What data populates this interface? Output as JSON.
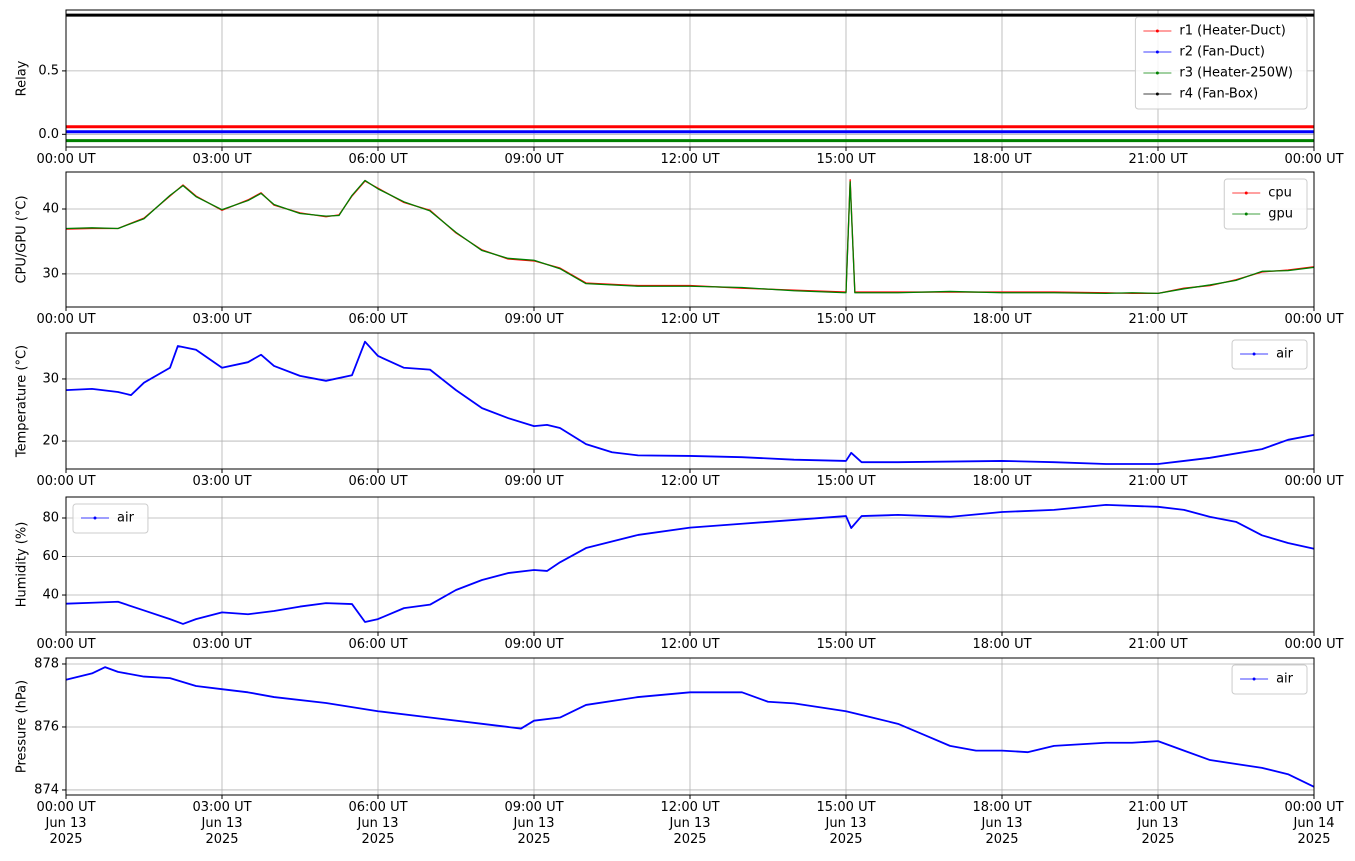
{
  "chart_data": [
    {
      "type": "line",
      "ylabel": "Relay",
      "x": [
        0,
        24
      ],
      "series": [
        {
          "name": "r1 (Heater-Duct)",
          "color": "#ff0000",
          "values": [
            0.06,
            0.06
          ]
        },
        {
          "name": "r2 (Fan-Duct)",
          "color": "#0000ff",
          "values": [
            0.02,
            0.02
          ]
        },
        {
          "name": "r3 (Heater-250W)",
          "color": "#008000",
          "values": [
            -0.05,
            -0.05
          ]
        },
        {
          "name": "r4 (Fan-Box)",
          "color": "#000000",
          "values": [
            0.94,
            0.94
          ]
        }
      ],
      "xlim": [
        0,
        24
      ],
      "xticks": [
        {
          "value": 0,
          "label": "00:00 UT"
        },
        {
          "value": 3,
          "label": "03:00 UT"
        },
        {
          "value": 6,
          "label": "06:00 UT"
        },
        {
          "value": 9,
          "label": "09:00 UT"
        },
        {
          "value": 12,
          "label": "12:00 UT"
        },
        {
          "value": 15,
          "label": "15:00 UT"
        },
        {
          "value": 18,
          "label": "18:00 UT"
        },
        {
          "value": 21,
          "label": "21:00 UT"
        },
        {
          "value": 24,
          "label": "00:00 UT"
        }
      ],
      "ylim": [
        -0.1,
        0.98
      ],
      "yticks": [
        {
          "value": 0,
          "label": "0.0"
        },
        0.5
      ],
      "grid": true,
      "legend": "upper right"
    },
    {
      "type": "line",
      "ylabel": "CPU/GPU (°C)",
      "x": [
        0,
        0.5,
        1,
        1.5,
        2,
        2.25,
        2.5,
        3,
        3.5,
        3.75,
        4,
        4.5,
        5,
        5.25,
        5.5,
        5.75,
        6,
        6.5,
        7,
        7.5,
        8,
        8.5,
        9,
        9.5,
        10,
        11,
        12,
        13,
        14,
        15,
        15.08,
        15.17,
        16,
        17,
        18,
        19,
        20,
        20.5,
        21,
        21.5,
        22,
        22.5,
        23,
        23.5,
        24
      ],
      "series": [
        {
          "name": "cpu",
          "color": "#ff0000",
          "values": [
            36.9,
            37,
            37,
            38.6,
            42,
            43.7,
            42,
            39.8,
            41.4,
            42.5,
            40.6,
            39.4,
            38.8,
            39.1,
            42,
            44.3,
            43.2,
            41,
            39.8,
            36.3,
            33.7,
            32.3,
            32,
            30.9,
            28.6,
            28.2,
            28.2,
            27.8,
            27.5,
            27.2,
            44.5,
            27.2,
            27.2,
            27.2,
            27.2,
            27.2,
            27.1,
            27,
            27,
            27.8,
            28.2,
            29.1,
            30.3,
            30.6,
            31.1
          ]
        },
        {
          "name": "gpu",
          "color": "#008000",
          "values": [
            37,
            37.1,
            37,
            38.5,
            42.1,
            43.6,
            41.9,
            39.9,
            41.3,
            42.4,
            40.7,
            39.3,
            38.9,
            39,
            42.1,
            44.4,
            43.1,
            41.1,
            39.7,
            36.4,
            33.6,
            32.4,
            32.1,
            30.8,
            28.5,
            28.1,
            28.1,
            27.9,
            27.4,
            27.1,
            44.2,
            27.1,
            27.1,
            27.3,
            27.1,
            27.1,
            27,
            27.1,
            27,
            27.7,
            28.3,
            29,
            30.4,
            30.5,
            31
          ]
        }
      ],
      "xlim": [
        0,
        24
      ],
      "xticks": [
        {
          "value": 0,
          "label": "00:00 UT"
        },
        {
          "value": 3,
          "label": "03:00 UT"
        },
        {
          "value": 6,
          "label": "06:00 UT"
        },
        {
          "value": 9,
          "label": "09:00 UT"
        },
        {
          "value": 12,
          "label": "12:00 UT"
        },
        {
          "value": 15,
          "label": "15:00 UT"
        },
        {
          "value": 18,
          "label": "18:00 UT"
        },
        {
          "value": 21,
          "label": "21:00 UT"
        },
        {
          "value": 24,
          "label": "00:00 UT"
        }
      ],
      "ylim": [
        24.9,
        45.7
      ],
      "yticks": [
        30,
        40
      ],
      "grid": true,
      "legend": "upper right"
    },
    {
      "type": "line",
      "ylabel": "Temperature (°C)",
      "x": [
        0,
        0.5,
        1,
        1.25,
        1.5,
        2,
        2.15,
        2.5,
        3,
        3.5,
        3.75,
        4,
        4.5,
        5,
        5.5,
        5.75,
        6,
        6.5,
        7,
        7.5,
        8,
        8.5,
        9,
        9.25,
        9.5,
        10,
        10.5,
        11,
        12,
        13,
        14,
        15,
        15.1,
        15.3,
        16,
        18,
        19,
        20,
        21,
        21.5,
        22,
        23,
        23.5,
        24
      ],
      "series": [
        {
          "name": "air",
          "color": "#0000ff",
          "values": [
            28.2,
            28.4,
            27.9,
            27.4,
            29.4,
            31.8,
            35.3,
            34.7,
            31.8,
            32.7,
            33.9,
            32.1,
            30.5,
            29.7,
            30.6,
            36,
            33.7,
            31.8,
            31.5,
            28.2,
            25.3,
            23.7,
            22.4,
            22.6,
            22.1,
            19.5,
            18.2,
            17.7,
            17.6,
            17.4,
            17,
            16.8,
            18.1,
            16.6,
            16.6,
            16.8,
            16.6,
            16.3,
            16.3,
            16.8,
            17.3,
            18.7,
            20.2,
            21
          ]
        }
      ],
      "xlim": [
        0,
        24
      ],
      "xticks": [
        {
          "value": 0,
          "label": "00:00 UT"
        },
        {
          "value": 3,
          "label": "03:00 UT"
        },
        {
          "value": 6,
          "label": "06:00 UT"
        },
        {
          "value": 9,
          "label": "09:00 UT"
        },
        {
          "value": 12,
          "label": "12:00 UT"
        },
        {
          "value": 15,
          "label": "15:00 UT"
        },
        {
          "value": 18,
          "label": "18:00 UT"
        },
        {
          "value": 21,
          "label": "21:00 UT"
        },
        {
          "value": 24,
          "label": "00:00 UT"
        }
      ],
      "ylim": [
        15.5,
        37.4
      ],
      "yticks": [
        20,
        30
      ],
      "grid": true,
      "legend": "upper right"
    },
    {
      "type": "line",
      "ylabel": "Humidity (%)",
      "x": [
        0,
        0.5,
        1,
        1.5,
        2,
        2.25,
        2.5,
        3,
        3.5,
        4,
        4.5,
        5,
        5.5,
        5.75,
        6,
        6.5,
        7,
        7.5,
        8,
        8.5,
        9,
        9.25,
        9.5,
        10,
        11,
        12,
        13,
        14,
        15,
        15.1,
        15.3,
        16,
        17,
        18,
        19,
        20,
        21,
        21.5,
        22,
        22.5,
        23,
        23.5,
        24
      ],
      "series": [
        {
          "name": "air",
          "color": "#0000ff",
          "values": [
            35.5,
            36,
            36.5,
            32,
            27.5,
            25,
            27.5,
            31,
            30,
            31.7,
            34,
            35.8,
            35.3,
            26,
            27.5,
            33.2,
            35,
            42.6,
            47.8,
            51.4,
            53,
            52.5,
            57,
            64.4,
            71.2,
            75,
            77,
            79,
            81,
            74.8,
            81,
            81.6,
            80.6,
            83.1,
            84.2,
            86.8,
            85.8,
            84.2,
            80.6,
            78,
            71,
            67,
            64
          ]
        }
      ],
      "xlim": [
        0,
        24
      ],
      "xticks": [
        {
          "value": 0,
          "label": "00:00 UT"
        },
        {
          "value": 3,
          "label": "03:00 UT"
        },
        {
          "value": 6,
          "label": "06:00 UT"
        },
        {
          "value": 9,
          "label": "09:00 UT"
        },
        {
          "value": 12,
          "label": "12:00 UT"
        },
        {
          "value": 15,
          "label": "15:00 UT"
        },
        {
          "value": 18,
          "label": "18:00 UT"
        },
        {
          "value": 21,
          "label": "21:00 UT"
        },
        {
          "value": 24,
          "label": "00:00 UT"
        }
      ],
      "ylim": [
        20.8,
        90.9
      ],
      "yticks": [
        40,
        60,
        80
      ],
      "grid": true,
      "legend": "upper left"
    },
    {
      "type": "line",
      "ylabel": "Pressure (hPa)",
      "x": [
        0,
        0.5,
        0.75,
        1,
        1.5,
        2,
        2.5,
        3,
        3.5,
        4,
        5,
        6,
        7,
        8,
        8.75,
        9,
        9.5,
        10,
        11,
        12,
        13,
        13.5,
        14,
        15,
        15.5,
        16,
        16.5,
        17,
        17.5,
        18,
        18.5,
        19,
        20,
        20.5,
        21,
        21.5,
        22,
        23,
        23.5,
        24
      ],
      "series": [
        {
          "name": "air",
          "color": "#0000ff",
          "values": [
            877.5,
            877.7,
            877.9,
            877.75,
            877.6,
            877.55,
            877.3,
            877.2,
            877.1,
            876.95,
            876.76,
            876.5,
            876.3,
            876.1,
            875.95,
            876.2,
            876.3,
            876.7,
            876.95,
            877.1,
            877.1,
            876.8,
            876.75,
            876.5,
            876.3,
            876.1,
            875.75,
            875.4,
            875.25,
            875.25,
            875.2,
            875.4,
            875.5,
            875.5,
            875.55,
            875.25,
            874.95,
            874.7,
            874.5,
            874.1
          ]
        }
      ],
      "xlim": [
        0,
        24
      ],
      "xticks": [
        {
          "value": 0,
          "label": "00:00 UT\nJun 13\n2025"
        },
        {
          "value": 3,
          "label": "03:00 UT\nJun 13\n2025"
        },
        {
          "value": 6,
          "label": "06:00 UT\nJun 13\n2025"
        },
        {
          "value": 9,
          "label": "09:00 UT\nJun 13\n2025"
        },
        {
          "value": 12,
          "label": "12:00 UT\nJun 13\n2025"
        },
        {
          "value": 15,
          "label": "15:00 UT\nJun 13\n2025"
        },
        {
          "value": 18,
          "label": "18:00 UT\nJun 13\n2025"
        },
        {
          "value": 21,
          "label": "21:00 UT\nJun 13\n2025"
        },
        {
          "value": 24,
          "label": "00:00 UT\nJun 14\n2025"
        }
      ],
      "ylim": [
        873.84,
        878.19
      ],
      "yticks": [
        874,
        876,
        878
      ],
      "grid": true,
      "legend": "upper right"
    }
  ]
}
